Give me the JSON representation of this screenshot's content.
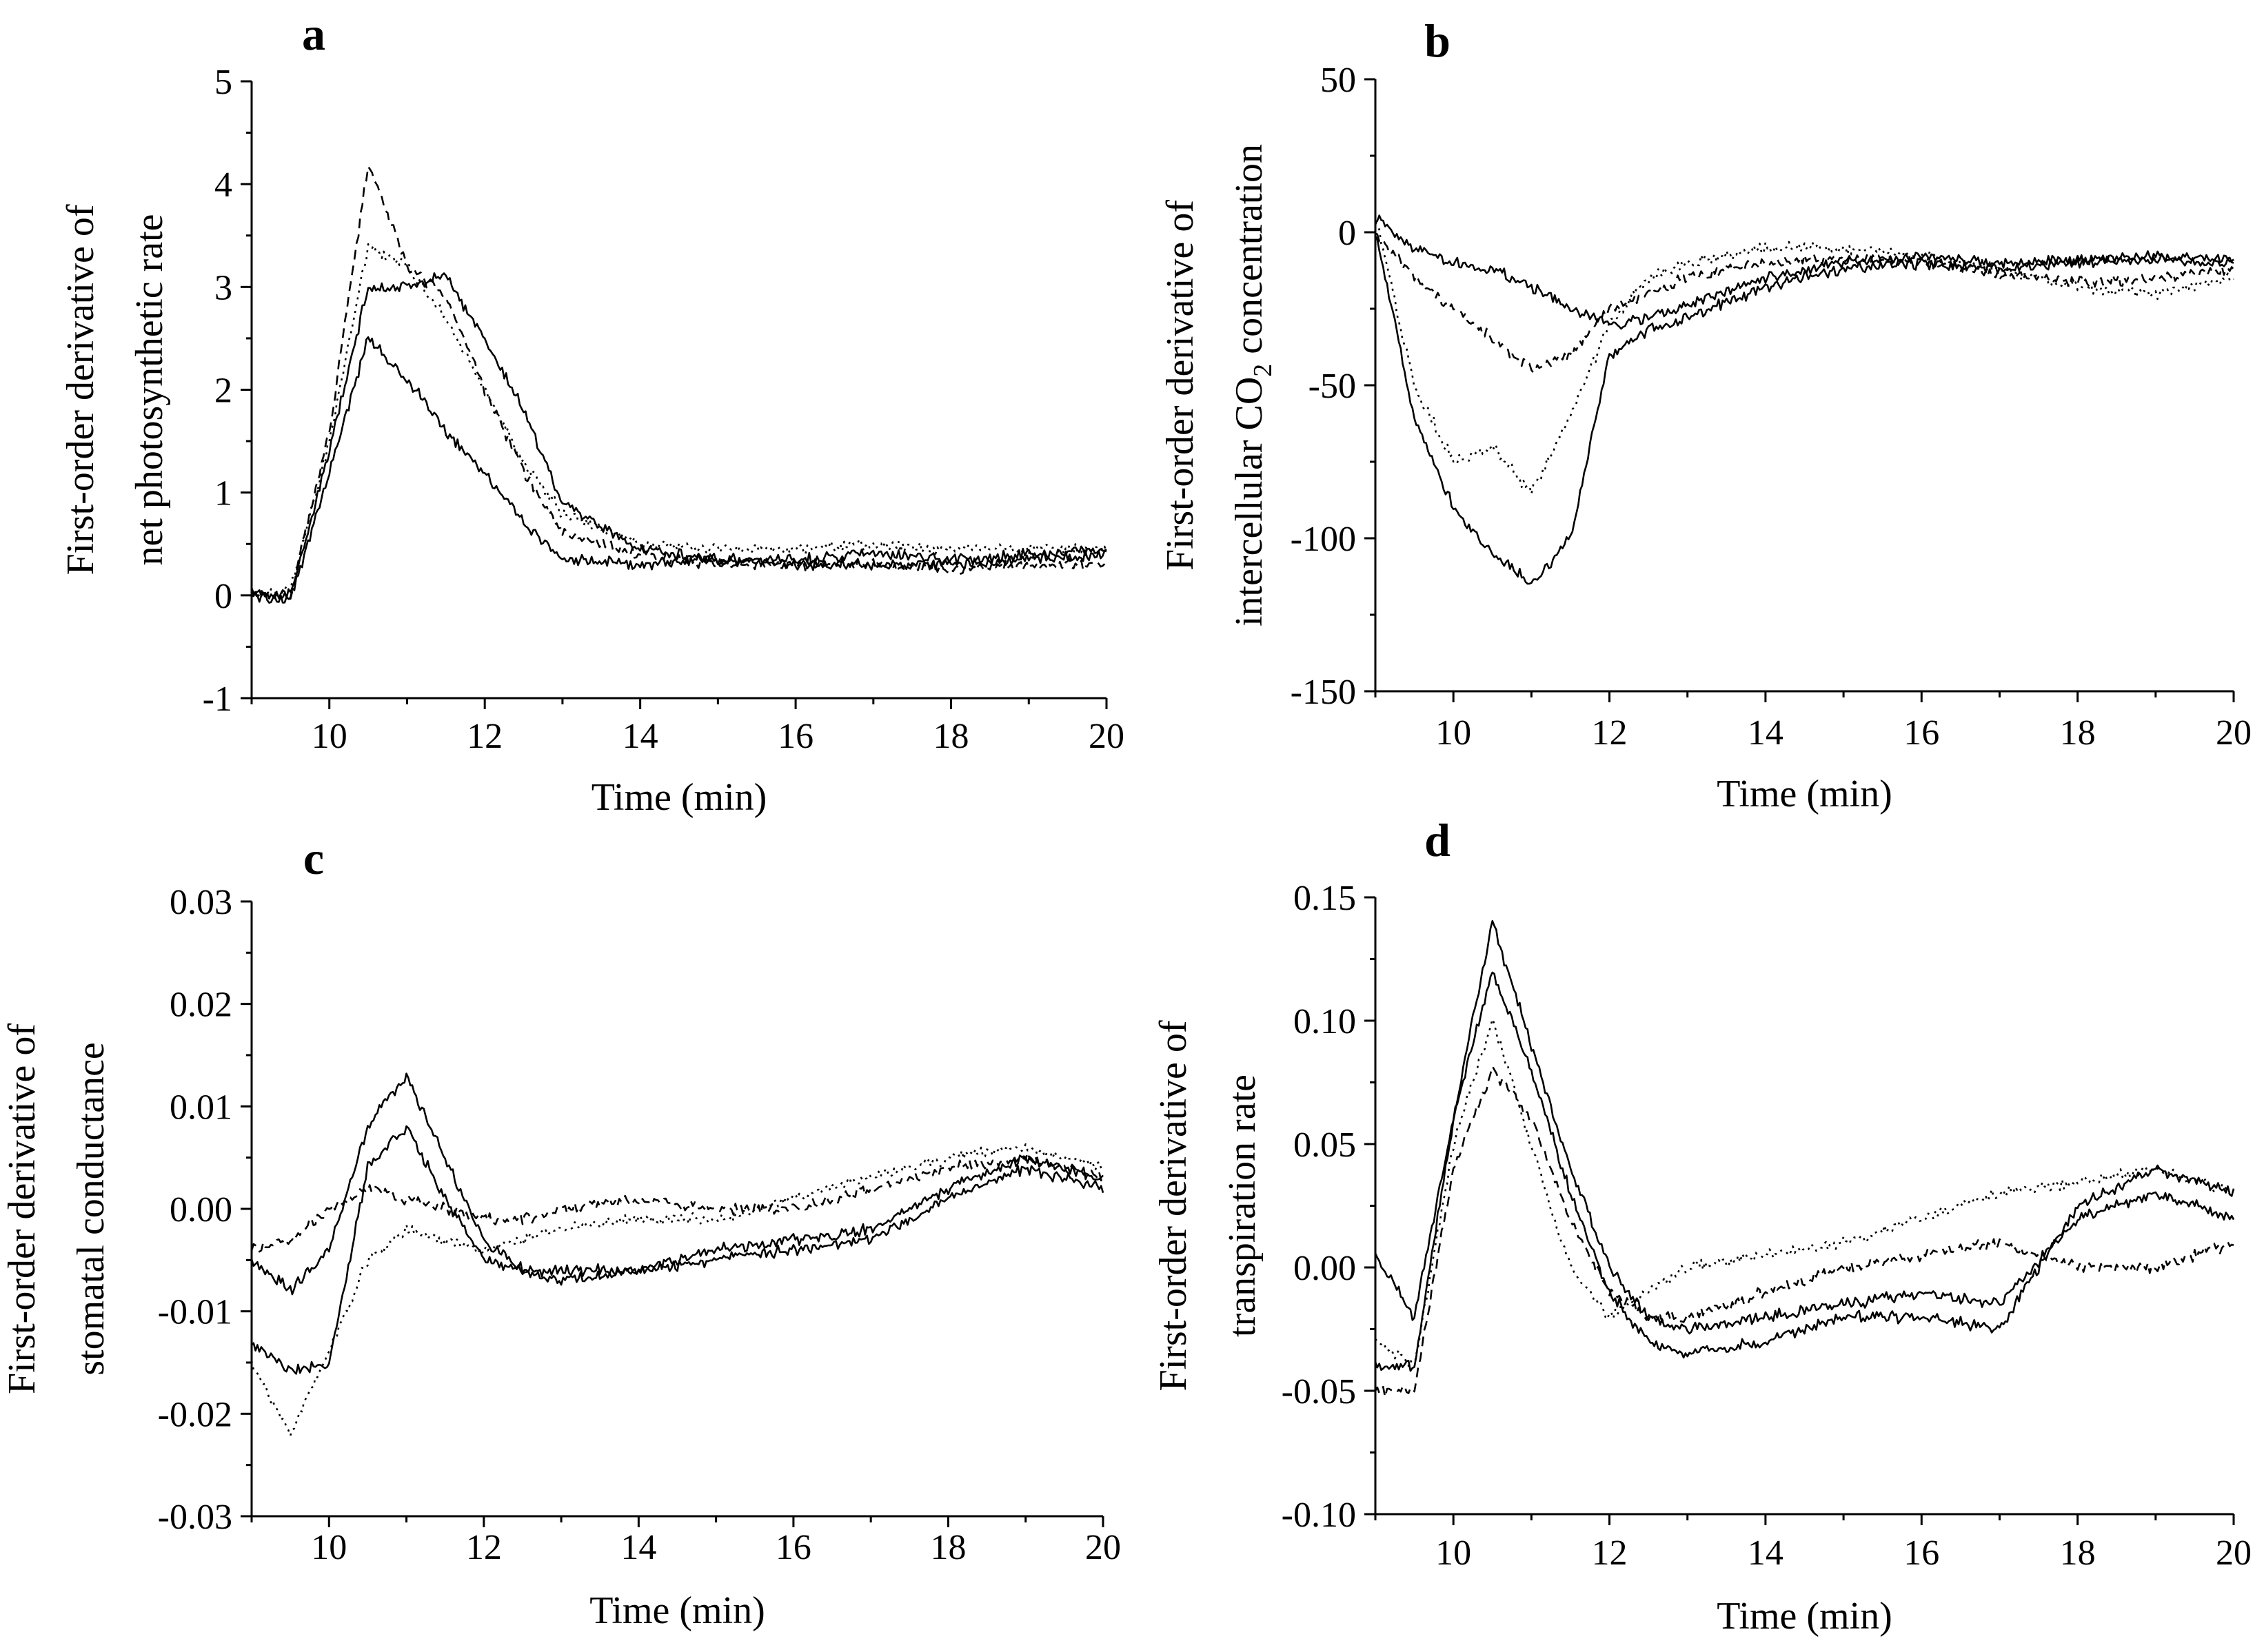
{
  "figure": {
    "panels": [
      {
        "label": "a"
      },
      {
        "label": "b"
      },
      {
        "label": "c"
      },
      {
        "label": "d"
      }
    ]
  },
  "chart_data": [
    {
      "panel": "a",
      "type": "line",
      "ylabel_lines": [
        "First-order derivative of",
        "net photosynthetic rate"
      ],
      "xlabel": "Time (min)",
      "xlim": [
        9,
        20
      ],
      "ylim": [
        -1,
        5
      ],
      "xticks": [
        10,
        12,
        14,
        16,
        18,
        20
      ],
      "yticks": [
        -1,
        0,
        1,
        2,
        3,
        4,
        5
      ],
      "ytick_labels": [
        "-1",
        "0",
        "1",
        "2",
        "3",
        "4",
        "5"
      ],
      "series": [
        {
          "dash": "solid",
          "x": [
            9,
            9.5,
            10,
            10.5,
            11,
            11.5,
            12,
            12.5,
            13,
            14,
            15,
            16,
            17,
            18,
            19,
            20
          ],
          "values": [
            0.0,
            -0.05,
            1.2,
            2.5,
            2.1,
            1.6,
            1.2,
            0.7,
            0.35,
            0.3,
            0.35,
            0.3,
            0.3,
            0.3,
            0.35,
            0.4
          ]
        },
        {
          "dash": "solid",
          "x": [
            9,
            9.5,
            10,
            10.5,
            11,
            11.5,
            12,
            12.5,
            13,
            14,
            15,
            16,
            17,
            18,
            19,
            20
          ],
          "values": [
            0.05,
            0.0,
            1.4,
            3.0,
            3.0,
            3.1,
            2.5,
            1.8,
            0.9,
            0.45,
            0.35,
            0.35,
            0.4,
            0.35,
            0.4,
            0.45
          ]
        },
        {
          "dash": "dashed",
          "x": [
            9,
            9.5,
            10,
            10.5,
            11,
            11.5,
            12,
            12.5,
            13,
            14,
            15,
            16,
            17,
            18,
            19,
            20
          ],
          "values": [
            0.0,
            0.0,
            1.6,
            4.2,
            3.2,
            2.9,
            2.0,
            1.2,
            0.6,
            0.4,
            0.3,
            0.3,
            0.3,
            0.25,
            0.3,
            0.3
          ]
        },
        {
          "dash": "dotted",
          "x": [
            9,
            9.5,
            10,
            10.5,
            11,
            11.5,
            12,
            12.5,
            13,
            14,
            15,
            16,
            17,
            18,
            19,
            20
          ],
          "values": [
            0.0,
            0.05,
            1.5,
            3.4,
            3.2,
            2.7,
            2.0,
            1.3,
            0.8,
            0.5,
            0.45,
            0.45,
            0.5,
            0.45,
            0.45,
            0.45
          ]
        }
      ]
    },
    {
      "panel": "b",
      "type": "line",
      "ylabel_lines": [
        "First-order derivative of",
        "intercellular CO2 concentration"
      ],
      "ylabel_parts": {
        "pre": "intercellular CO",
        "sub": "2",
        "post": " concentration"
      },
      "xlabel": "Time (min)",
      "xlim": [
        9,
        20
      ],
      "ylim": [
        -150,
        50
      ],
      "xticks": [
        10,
        12,
        14,
        16,
        18,
        20
      ],
      "yticks": [
        -150,
        -100,
        -50,
        0,
        50
      ],
      "ytick_labels": [
        "-150",
        "-100",
        "-50",
        "0",
        "50"
      ],
      "series": [
        {
          "dash": "solid",
          "x": [
            9,
            9.5,
            10,
            10.5,
            11,
            11.5,
            12,
            12.5,
            13,
            14,
            15,
            16,
            17,
            18,
            19,
            20
          ],
          "values": [
            5,
            -5,
            -10,
            -12,
            -18,
            -25,
            -30,
            -28,
            -24,
            -15,
            -10,
            -8,
            -10,
            -9,
            -8,
            -9
          ]
        },
        {
          "dash": "solid",
          "x": [
            9,
            9.5,
            10,
            10.5,
            11,
            11.5,
            12,
            12.5,
            13,
            14,
            15,
            16,
            17,
            18,
            19,
            20
          ],
          "values": [
            0,
            -60,
            -90,
            -105,
            -115,
            -100,
            -40,
            -32,
            -28,
            -18,
            -12,
            -10,
            -12,
            -10,
            -9,
            -10
          ]
        },
        {
          "dash": "dashed",
          "x": [
            9,
            9.5,
            10,
            10.5,
            11,
            11.5,
            12,
            12.5,
            13,
            14,
            15,
            16,
            17,
            18,
            19,
            20
          ],
          "values": [
            0,
            -15,
            -25,
            -35,
            -45,
            -40,
            -25,
            -20,
            -15,
            -10,
            -8,
            -10,
            -14,
            -16,
            -15,
            -12
          ]
        },
        {
          "dash": "dotted",
          "x": [
            9,
            9.5,
            10,
            10.5,
            11,
            11.5,
            12,
            12.5,
            13,
            14,
            15,
            16,
            17,
            18,
            19,
            20
          ],
          "values": [
            5,
            -50,
            -75,
            -70,
            -85,
            -60,
            -30,
            -15,
            -10,
            -5,
            -5,
            -8,
            -12,
            -18,
            -20,
            -15
          ]
        }
      ]
    },
    {
      "panel": "c",
      "type": "line",
      "ylabel_lines": [
        "First-order derivative of",
        "stomatal conductance"
      ],
      "xlabel": "Time (min)",
      "xlim": [
        9,
        20
      ],
      "ylim": [
        -0.03,
        0.03
      ],
      "xticks": [
        10,
        12,
        14,
        16,
        18,
        20
      ],
      "yticks": [
        -0.03,
        -0.02,
        -0.01,
        0.0,
        0.01,
        0.02,
        0.03
      ],
      "ytick_labels": [
        "-0.03",
        "-0.02",
        "-0.01",
        "0.00",
        "0.01",
        "0.02",
        "0.03"
      ],
      "series": [
        {
          "dash": "solid",
          "x": [
            9,
            9.5,
            10,
            10.5,
            11,
            11.5,
            12,
            12.5,
            13,
            14,
            15,
            16,
            17,
            18,
            19,
            20
          ],
          "values": [
            -0.005,
            -0.008,
            -0.004,
            0.008,
            0.013,
            0.005,
            -0.003,
            -0.006,
            -0.006,
            -0.006,
            -0.004,
            -0.003,
            -0.002,
            0.002,
            0.005,
            0.003
          ]
        },
        {
          "dash": "solid",
          "x": [
            9,
            9.5,
            10,
            10.5,
            11,
            11.5,
            12,
            12.5,
            13,
            14,
            15,
            16,
            17,
            18,
            19,
            20
          ],
          "values": [
            -0.013,
            -0.016,
            -0.015,
            0.004,
            0.008,
            0.001,
            -0.005,
            -0.006,
            -0.007,
            -0.006,
            -0.005,
            -0.004,
            -0.003,
            0.001,
            0.004,
            0.002
          ]
        },
        {
          "dash": "dashed",
          "x": [
            9,
            9.5,
            10,
            10.5,
            11,
            11.5,
            12,
            12.5,
            13,
            14,
            15,
            16,
            17,
            18,
            19,
            20
          ],
          "values": [
            -0.004,
            -0.003,
            0.0,
            0.002,
            0.001,
            0.0,
            -0.001,
            -0.001,
            0.0,
            0.001,
            0.0,
            0.0,
            0.002,
            0.004,
            0.005,
            0.003
          ]
        },
        {
          "dash": "dotted",
          "x": [
            9,
            9.5,
            10,
            10.5,
            11,
            11.5,
            12,
            12.5,
            13,
            14,
            15,
            16,
            17,
            18,
            19,
            20
          ],
          "values": [
            -0.015,
            -0.022,
            -0.014,
            -0.005,
            -0.002,
            -0.003,
            -0.004,
            -0.003,
            -0.002,
            -0.001,
            -0.001,
            0.001,
            0.003,
            0.005,
            0.006,
            0.004
          ]
        }
      ]
    },
    {
      "panel": "d",
      "type": "line",
      "ylabel_lines": [
        "First-order derivative of",
        "transpiration rate"
      ],
      "xlabel": "Time (min)",
      "xlim": [
        9,
        20
      ],
      "ylim": [
        -0.1,
        0.15
      ],
      "xticks": [
        10,
        12,
        14,
        16,
        18,
        20
      ],
      "yticks": [
        -0.1,
        -0.05,
        0.0,
        0.05,
        0.1,
        0.15
      ],
      "ytick_labels": [
        "-0.10",
        "-0.05",
        "0.00",
        "0.05",
        "0.10",
        "0.15"
      ],
      "series": [
        {
          "dash": "solid",
          "x": [
            9,
            9.5,
            10,
            10.5,
            11,
            11.5,
            12,
            12.5,
            13,
            14,
            15,
            16,
            17,
            18,
            19,
            20
          ],
          "values": [
            0.005,
            -0.02,
            0.06,
            0.14,
            0.09,
            0.04,
            0.0,
            -0.02,
            -0.025,
            -0.02,
            -0.015,
            -0.01,
            -0.015,
            0.02,
            0.03,
            0.02
          ]
        },
        {
          "dash": "solid",
          "x": [
            9,
            9.5,
            10,
            10.5,
            11,
            11.5,
            12,
            12.5,
            13,
            14,
            15,
            16,
            17,
            18,
            19,
            20
          ],
          "values": [
            -0.04,
            -0.04,
            0.06,
            0.12,
            0.08,
            0.03,
            -0.01,
            -0.03,
            -0.035,
            -0.03,
            -0.02,
            -0.02,
            -0.025,
            0.025,
            0.04,
            0.03
          ]
        },
        {
          "dash": "dashed",
          "x": [
            9,
            9.5,
            10,
            10.5,
            11,
            11.5,
            12,
            12.5,
            13,
            14,
            15,
            16,
            17,
            18,
            19,
            20
          ],
          "values": [
            -0.05,
            -0.05,
            0.04,
            0.08,
            0.06,
            0.02,
            -0.01,
            -0.02,
            -0.02,
            -0.01,
            0.0,
            0.005,
            0.01,
            0.0,
            0.0,
            0.01
          ]
        },
        {
          "dash": "dotted",
          "x": [
            9,
            9.5,
            10,
            10.5,
            11,
            11.5,
            12,
            12.5,
            13,
            14,
            15,
            16,
            17,
            18,
            19,
            20
          ],
          "values": [
            -0.03,
            -0.04,
            0.05,
            0.1,
            0.05,
            0.0,
            -0.02,
            -0.01,
            0.0,
            0.005,
            0.01,
            0.02,
            0.03,
            0.035,
            0.04,
            0.03
          ]
        }
      ]
    }
  ]
}
